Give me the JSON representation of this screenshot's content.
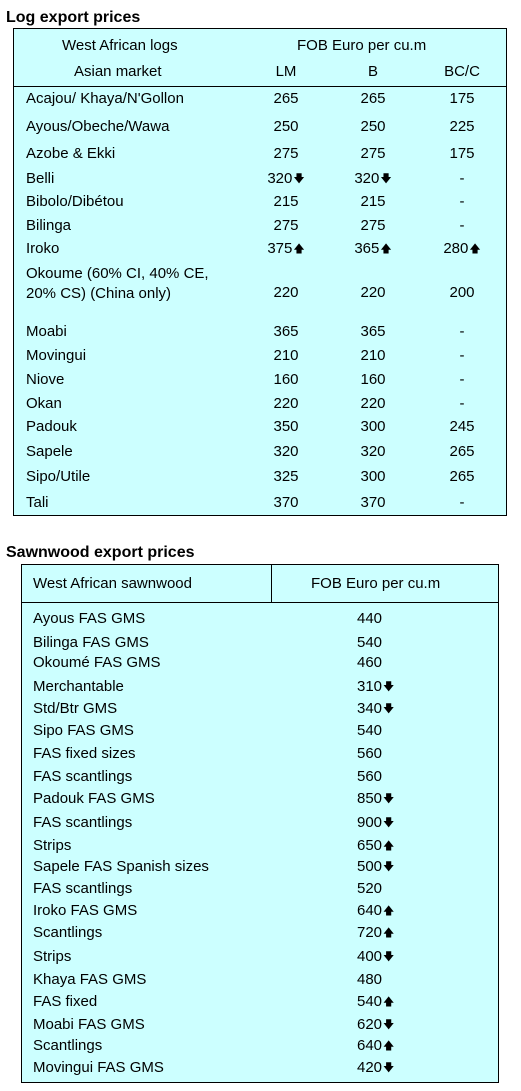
{
  "log": {
    "title": "Log export prices",
    "header": {
      "col1_row1": "West African logs",
      "col2_row1": "FOB Euro per cu.m",
      "col1_row2": "Asian market",
      "lm": "LM",
      "b": "B",
      "bc": "BC/C"
    },
    "rows": [
      {
        "name": "Acajou/ Khaya/N'Gollon",
        "lm": "265",
        "lm_arrow": "",
        "b": "265",
        "b_arrow": "",
        "bc": "175",
        "bc_arrow": ""
      },
      {
        "name": "Ayous/Obeche/Wawa",
        "lm": "250",
        "lm_arrow": "",
        "b": "250",
        "b_arrow": "",
        "bc": "225",
        "bc_arrow": ""
      },
      {
        "name": "Azobe & Ekki",
        "lm": "275",
        "lm_arrow": "",
        "b": "275",
        "b_arrow": "",
        "bc": "175",
        "bc_arrow": ""
      },
      {
        "name": "Belli",
        "lm": "320",
        "lm_arrow": "down",
        "b": "320",
        "b_arrow": "down",
        "bc": "-",
        "bc_arrow": ""
      },
      {
        "name": "Bibolo/Dibétou",
        "lm": "215",
        "lm_arrow": "",
        "b": "215",
        "b_arrow": "",
        "bc": "-",
        "bc_arrow": ""
      },
      {
        "name": "Bilinga",
        "lm": "275",
        "lm_arrow": "",
        "b": "275",
        "b_arrow": "",
        "bc": "-",
        "bc_arrow": ""
      },
      {
        "name": "Iroko",
        "lm": "375",
        "lm_arrow": "up",
        "b": "365",
        "b_arrow": "up",
        "bc": "280",
        "bc_arrow": "up"
      },
      {
        "name": "Okoume (60% CI, 40% CE, 20% CS) (China only)",
        "lm": "220",
        "lm_arrow": "",
        "b": "220",
        "b_arrow": "",
        "bc": "200",
        "bc_arrow": ""
      },
      {
        "name": "Moabi",
        "lm": "365",
        "lm_arrow": "",
        "b": "365",
        "b_arrow": "",
        "bc": "-",
        "bc_arrow": ""
      },
      {
        "name": "Movingui",
        "lm": "210",
        "lm_arrow": "",
        "b": "210",
        "b_arrow": "",
        "bc": "-",
        "bc_arrow": ""
      },
      {
        "name": "Niove",
        "lm": "160",
        "lm_arrow": "",
        "b": "160",
        "b_arrow": "",
        "bc": "-",
        "bc_arrow": ""
      },
      {
        "name": "Okan",
        "lm": "220",
        "lm_arrow": "",
        "b": "220",
        "b_arrow": "",
        "bc": "-",
        "bc_arrow": ""
      },
      {
        "name": "Padouk",
        "lm": "350",
        "lm_arrow": "",
        "b": "300",
        "b_arrow": "",
        "bc": "245",
        "bc_arrow": ""
      },
      {
        "name": "Sapele",
        "lm": "320",
        "lm_arrow": "",
        "b": "320",
        "b_arrow": "",
        "bc": "265",
        "bc_arrow": ""
      },
      {
        "name": "Sipo/Utile",
        "lm": "325",
        "lm_arrow": "",
        "b": "300",
        "b_arrow": "",
        "bc": "265",
        "bc_arrow": ""
      },
      {
        "name": "Tali",
        "lm": "370",
        "lm_arrow": "",
        "b": "370",
        "b_arrow": "",
        "bc": "-",
        "bc_arrow": ""
      }
    ]
  },
  "sawn": {
    "title": "Sawnwood export prices",
    "header": {
      "col1": "West African sawnwood",
      "col2": "FOB Euro per cu.m"
    },
    "rows": [
      {
        "name": "Ayous FAS GMS",
        "price": "440",
        "arrow": ""
      },
      {
        "name": "Bilinga FAS GMS",
        "price": "540",
        "arrow": ""
      },
      {
        "name": "Okoumé FAS GMS",
        "price": "460",
        "arrow": ""
      },
      {
        "name": "Merchantable",
        "price": "310",
        "arrow": "down"
      },
      {
        "name": "Std/Btr GMS",
        "price": "340",
        "arrow": "down"
      },
      {
        "name": "Sipo FAS GMS",
        "price": "540",
        "arrow": ""
      },
      {
        "name": "FAS fixed sizes",
        "price": "560",
        "arrow": ""
      },
      {
        "name": "FAS scantlings",
        "price": "560",
        "arrow": ""
      },
      {
        "name": "Padouk FAS GMS",
        "price": "850",
        "arrow": "down"
      },
      {
        "name": "FAS scantlings",
        "price": "900",
        "arrow": "down"
      },
      {
        "name": "Strips",
        "price": "650",
        "arrow": "up"
      },
      {
        "name": "Sapele FAS Spanish sizes",
        "price": "500",
        "arrow": "down"
      },
      {
        "name": "FAS scantlings",
        "price": "520",
        "arrow": ""
      },
      {
        "name": "Iroko FAS GMS",
        "price": "640",
        "arrow": "up"
      },
      {
        "name": "Scantlings",
        "price": "720",
        "arrow": "up"
      },
      {
        "name": "Strips",
        "price": "400",
        "arrow": "down"
      },
      {
        "name": "Khaya FAS GMS",
        "price": "480",
        "arrow": ""
      },
      {
        "name": "FAS fixed",
        "price": "540",
        "arrow": "up"
      },
      {
        "name": "Moabi FAS GMS",
        "price": "620",
        "arrow": "down"
      },
      {
        "name": "Scantlings",
        "price": "640",
        "arrow": "up"
      },
      {
        "name": "Movingui FAS GMS",
        "price": "420",
        "arrow": "down"
      }
    ]
  },
  "arrows": {
    "up": "🡅",
    "down": "🡇"
  }
}
